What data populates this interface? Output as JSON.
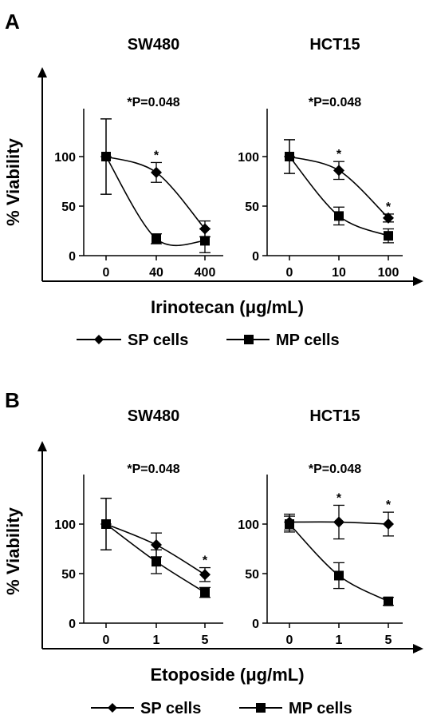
{
  "panels": [
    {
      "letter": "A",
      "ylabel": "% Viability",
      "xlabel": "Irinotecan (μg/mL)",
      "legend": [
        {
          "label": "SP cells",
          "marker": "diamond"
        },
        {
          "label": "MP cells",
          "marker": "square"
        }
      ]
    },
    {
      "letter": "B",
      "ylabel": "% Viability",
      "xlabel": "Etoposide (μg/mL)",
      "legend": [
        {
          "label": "SP cells",
          "marker": "diamond"
        },
        {
          "label": "MP cells",
          "marker": "square"
        }
      ]
    }
  ],
  "chart_data": [
    {
      "type": "line",
      "panel": "A",
      "title": "SW480",
      "annotation": "*P=0.048",
      "xlabel": "Irinotecan (μg/mL)",
      "ylabel": "% Viability",
      "categories": [
        "0",
        "40",
        "400"
      ],
      "y_ticks": [
        0,
        50,
        100
      ],
      "ylim": [
        0,
        140
      ],
      "series": [
        {
          "name": "SP cells",
          "marker": "diamond",
          "values": [
            100,
            84,
            27
          ],
          "errors": [
            38,
            10,
            8
          ],
          "significance": [
            "",
            "*",
            ""
          ]
        },
        {
          "name": "MP cells",
          "marker": "square",
          "values": [
            100,
            17,
            15
          ],
          "errors": [
            38,
            5,
            12
          ],
          "significance": [
            "",
            "",
            ""
          ]
        }
      ]
    },
    {
      "type": "line",
      "panel": "A",
      "title": "HCT15",
      "annotation": "*P=0.048",
      "xlabel": "Irinotecan (μg/mL)",
      "ylabel": "% Viability",
      "categories": [
        "0",
        "10",
        "100"
      ],
      "y_ticks": [
        0,
        50,
        100
      ],
      "ylim": [
        0,
        140
      ],
      "series": [
        {
          "name": "SP cells",
          "marker": "diamond",
          "values": [
            100,
            86,
            38
          ],
          "errors": [
            17,
            9,
            4
          ],
          "significance": [
            "",
            "*",
            "*"
          ]
        },
        {
          "name": "MP cells",
          "marker": "square",
          "values": [
            100,
            40,
            20
          ],
          "errors": [
            17,
            9,
            7
          ],
          "significance": [
            "",
            "",
            ""
          ]
        }
      ]
    },
    {
      "type": "line",
      "panel": "B",
      "title": "SW480",
      "annotation": "*P=0.048",
      "xlabel": "Etoposide (μg/mL)",
      "ylabel": "% Viability",
      "categories": [
        "0",
        "1",
        "5"
      ],
      "y_ticks": [
        0,
        50,
        100
      ],
      "ylim": [
        0,
        140
      ],
      "series": [
        {
          "name": "SP cells",
          "marker": "diamond",
          "values": [
            100,
            79,
            49
          ],
          "errors": [
            26,
            12,
            7
          ],
          "significance": [
            "",
            "",
            "*"
          ]
        },
        {
          "name": "MP cells",
          "marker": "square",
          "values": [
            100,
            62,
            31
          ],
          "errors": [
            26,
            12,
            5
          ],
          "significance": [
            "",
            "",
            ""
          ]
        }
      ]
    },
    {
      "type": "line",
      "panel": "B",
      "title": "HCT15",
      "annotation": "*P=0.048",
      "xlabel": "Etoposide (μg/mL)",
      "ylabel": "% Viability",
      "categories": [
        "0",
        "1",
        "5"
      ],
      "y_ticks": [
        0,
        50,
        100
      ],
      "ylim": [
        0,
        140
      ],
      "series": [
        {
          "name": "SP cells",
          "marker": "diamond",
          "values": [
            102,
            102,
            100
          ],
          "errors": [
            8,
            17,
            12
          ],
          "significance": [
            "",
            "*",
            "*"
          ]
        },
        {
          "name": "MP cells",
          "marker": "square",
          "values": [
            100,
            48,
            22
          ],
          "errors": [
            8,
            13,
            4
          ],
          "significance": [
            "",
            "",
            ""
          ]
        }
      ]
    }
  ]
}
